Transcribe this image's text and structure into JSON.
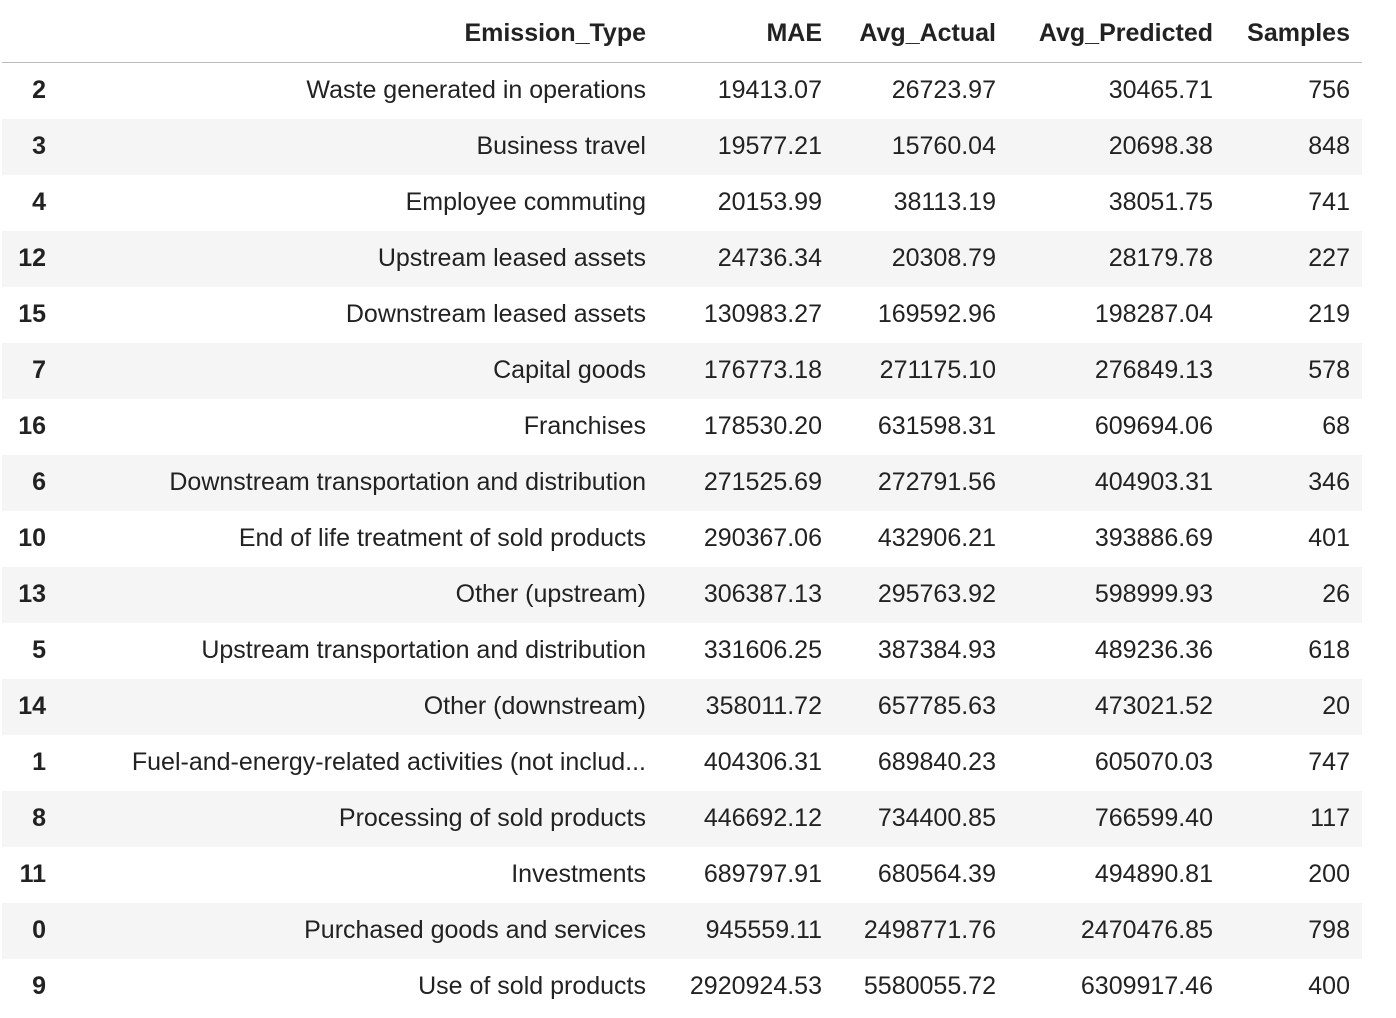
{
  "table": {
    "columns": [
      "Emission_Type",
      "MAE",
      "Avg_Actual",
      "Avg_Predicted",
      "Samples"
    ],
    "rows": [
      [
        "2",
        "Waste generated in operations",
        "19413.07",
        "26723.97",
        "30465.71",
        "756"
      ],
      [
        "3",
        "Business travel",
        "19577.21",
        "15760.04",
        "20698.38",
        "848"
      ],
      [
        "4",
        "Employee commuting",
        "20153.99",
        "38113.19",
        "38051.75",
        "741"
      ],
      [
        "12",
        "Upstream leased assets",
        "24736.34",
        "20308.79",
        "28179.78",
        "227"
      ],
      [
        "15",
        "Downstream leased assets",
        "130983.27",
        "169592.96",
        "198287.04",
        "219"
      ],
      [
        "7",
        "Capital goods",
        "176773.18",
        "271175.10",
        "276849.13",
        "578"
      ],
      [
        "16",
        "Franchises",
        "178530.20",
        "631598.31",
        "609694.06",
        "68"
      ],
      [
        "6",
        "Downstream transportation and distribution",
        "271525.69",
        "272791.56",
        "404903.31",
        "346"
      ],
      [
        "10",
        "End of life treatment of sold products",
        "290367.06",
        "432906.21",
        "393886.69",
        "401"
      ],
      [
        "13",
        "Other (upstream)",
        "306387.13",
        "295763.92",
        "598999.93",
        "26"
      ],
      [
        "5",
        "Upstream transportation and distribution",
        "331606.25",
        "387384.93",
        "489236.36",
        "618"
      ],
      [
        "14",
        "Other (downstream)",
        "358011.72",
        "657785.63",
        "473021.52",
        "20"
      ],
      [
        "1",
        "Fuel-and-energy-related activities (not includ...",
        "404306.31",
        "689840.23",
        "605070.03",
        "747"
      ],
      [
        "8",
        "Processing of sold products",
        "446692.12",
        "734400.85",
        "766599.40",
        "117"
      ],
      [
        "11",
        "Investments",
        "689797.91",
        "680564.39",
        "494890.81",
        "200"
      ],
      [
        "0",
        "Purchased goods and services",
        "945559.11",
        "2498771.76",
        "2470476.85",
        "798"
      ],
      [
        "9",
        "Use of sold products",
        "2920924.53",
        "5580055.72",
        "6309917.46",
        "400"
      ]
    ]
  }
}
